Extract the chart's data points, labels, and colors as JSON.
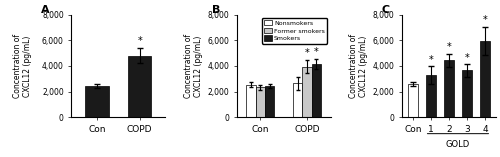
{
  "panel_A": {
    "categories": [
      "Con",
      "COPD"
    ],
    "values": [
      2450,
      4800
    ],
    "errors": [
      150,
      600
    ],
    "colors": [
      "#1a1a1a",
      "#1a1a1a"
    ],
    "star": [
      false,
      true
    ],
    "ylabel": "Concentration of\nCXCL12 (pg/mL)",
    "ylim": [
      0,
      8000
    ],
    "yticks": [
      0,
      2000,
      4000,
      6000,
      8000
    ],
    "label": "A"
  },
  "panel_B": {
    "groups": [
      "Con",
      "COPD"
    ],
    "subgroups": [
      "Nonsmokers",
      "Former smokers",
      "Smokers"
    ],
    "values": [
      [
        2550,
        2350,
        2450
      ],
      [
        2650,
        3950,
        4150
      ]
    ],
    "errors": [
      [
        200,
        200,
        150
      ],
      [
        500,
        500,
        400
      ]
    ],
    "colors": [
      "#ffffff",
      "#c8c8c8",
      "#1a1a1a"
    ],
    "star": [
      [
        false,
        false,
        false
      ],
      [
        false,
        true,
        true
      ]
    ],
    "ylabel": "Concentration of\nCXCL12 (pg/mL)",
    "ylim": [
      0,
      8000
    ],
    "yticks": [
      0,
      2000,
      4000,
      6000,
      8000
    ],
    "label": "B"
  },
  "panel_C": {
    "categories": [
      "Con",
      "1",
      "2",
      "3",
      "4"
    ],
    "values": [
      2600,
      3300,
      4450,
      3650,
      5950
    ],
    "errors": [
      150,
      700,
      500,
      500,
      1100
    ],
    "colors": [
      "#ffffff",
      "#1a1a1a",
      "#1a1a1a",
      "#1a1a1a",
      "#1a1a1a"
    ],
    "star": [
      false,
      true,
      true,
      true,
      true
    ],
    "ylabel": "Concentration of\nCXCL12 (pg/mL)",
    "ylim": [
      0,
      8000
    ],
    "yticks": [
      0,
      2000,
      4000,
      6000,
      8000
    ],
    "xlabel_group": "GOLD",
    "label": "C"
  }
}
